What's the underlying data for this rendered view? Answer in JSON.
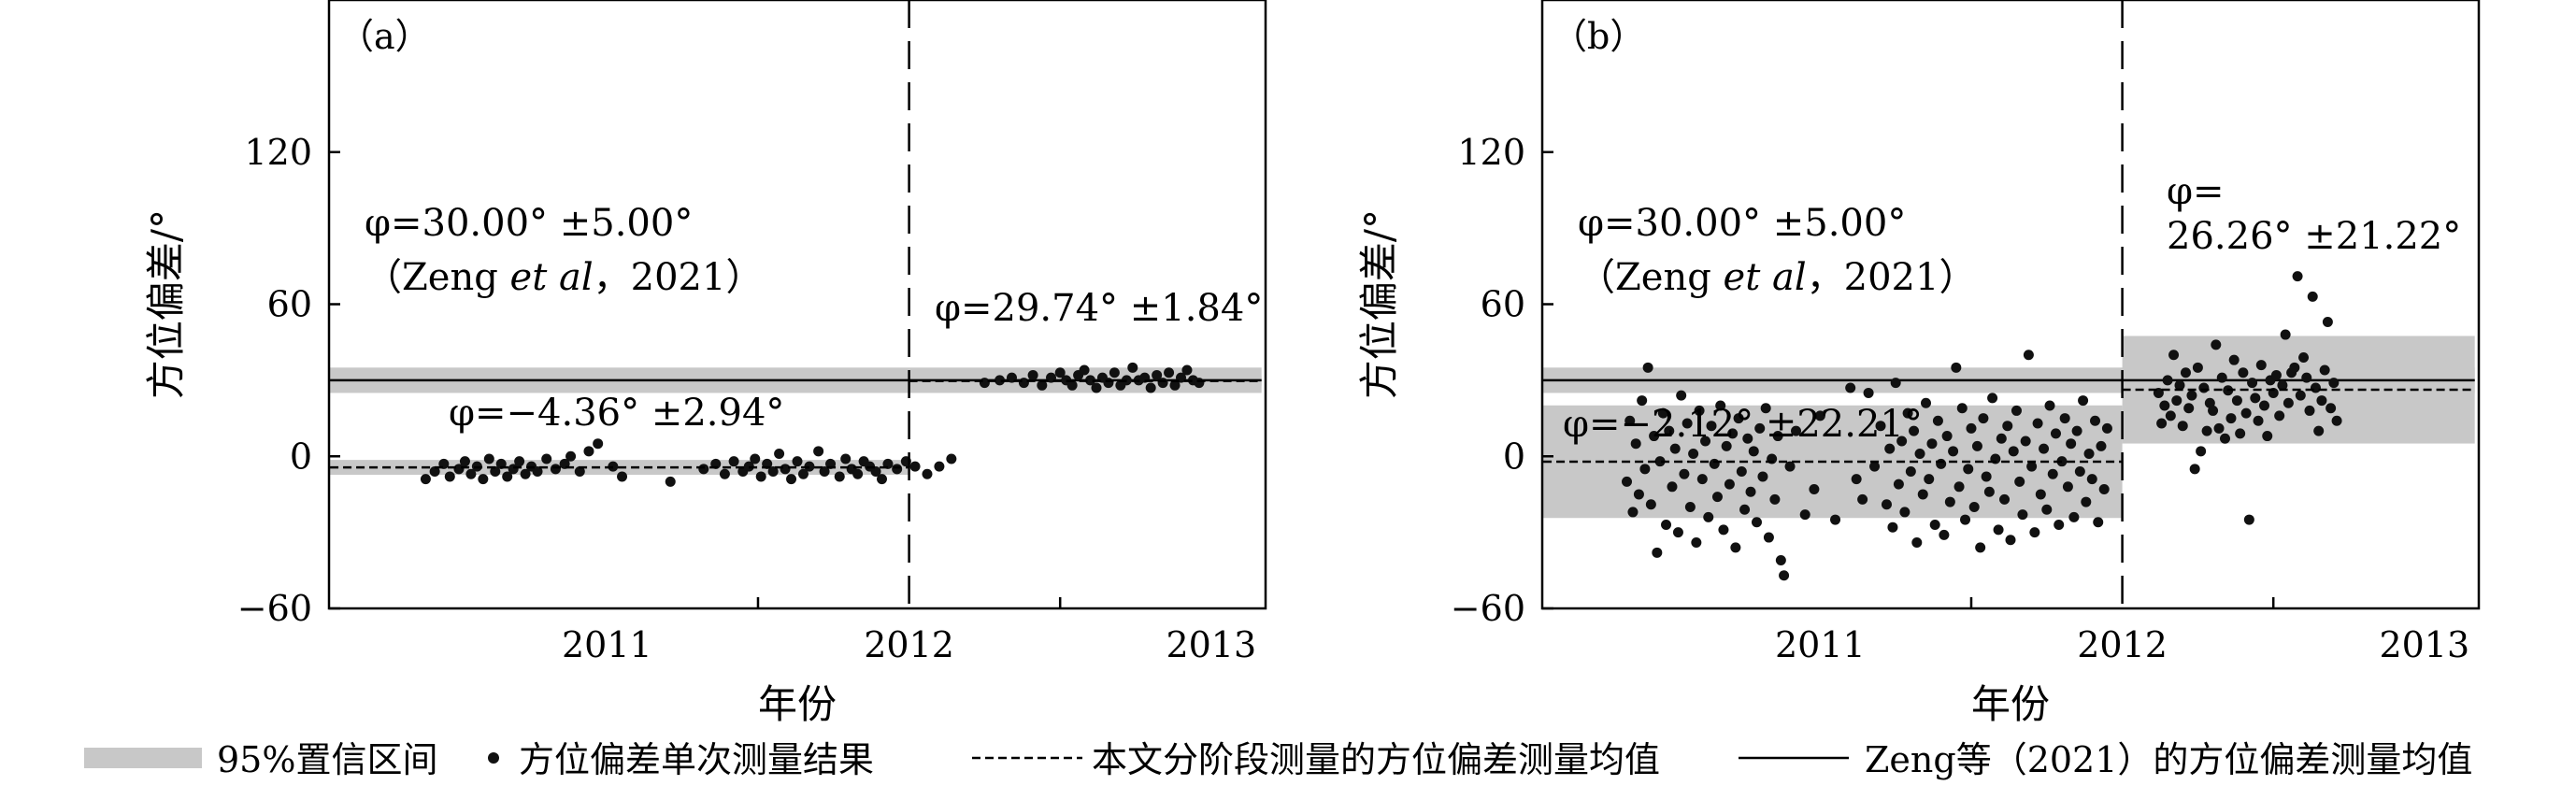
{
  "chart_data": [
    {
      "panel_label": "（a）",
      "type": "scatter",
      "xlabel": "年份",
      "ylabel": "方位偏差/°",
      "x_ticks": [
        "2011",
        "2012",
        "2013"
      ],
      "y_ticks": [
        "120",
        "60",
        "0",
        "−60"
      ],
      "y_tick_values": [
        120,
        60,
        0,
        -60
      ],
      "ylim": [
        -60,
        180
      ],
      "xlim": [
        2010.58,
        2013.68
      ],
      "grid": false,
      "stage_break_date": "2012-07-01",
      "annotations": {
        "zeng": "φ=30.00° ±5.00°",
        "zeng_ref_a": "（Zeng ",
        "zeng_ref_b": "et al",
        "zeng_ref_c": "，2021）",
        "stage1": "φ=−4.36° ±2.94°",
        "stage2": "φ=29.74° ±1.84°"
      },
      "zeng": {
        "mean": 30.0,
        "ci": 5.0,
        "from": "2010-08-01",
        "to": "2013-09-01"
      },
      "stages": [
        {
          "from": "2010-08-01",
          "to": "2012-07-01",
          "mean": -4.36,
          "ci": 2.94
        },
        {
          "from": "2012-07-01",
          "to": "2013-09-01",
          "mean": 29.74,
          "ci": 1.84
        }
      ],
      "points": [
        [
          2010.9,
          -9
        ],
        [
          2010.93,
          -6
        ],
        [
          2010.96,
          -3
        ],
        [
          2010.98,
          -8
        ],
        [
          2011.01,
          -5
        ],
        [
          2011.03,
          -2
        ],
        [
          2011.05,
          -7
        ],
        [
          2011.07,
          -4
        ],
        [
          2011.09,
          -9
        ],
        [
          2011.11,
          -1
        ],
        [
          2011.13,
          -6
        ],
        [
          2011.15,
          -3
        ],
        [
          2011.17,
          -8
        ],
        [
          2011.19,
          -5
        ],
        [
          2011.21,
          -2
        ],
        [
          2011.23,
          -7
        ],
        [
          2011.25,
          -4
        ],
        [
          2011.27,
          -6
        ],
        [
          2011.3,
          -1
        ],
        [
          2011.33,
          -5
        ],
        [
          2011.36,
          -3
        ],
        [
          2011.38,
          0
        ],
        [
          2011.41,
          -6
        ],
        [
          2011.44,
          2
        ],
        [
          2011.47,
          5
        ],
        [
          2011.52,
          -4
        ],
        [
          2011.55,
          -8
        ],
        [
          2011.71,
          -10
        ],
        [
          2011.82,
          -5
        ],
        [
          2011.86,
          -3
        ],
        [
          2011.89,
          -7
        ],
        [
          2011.92,
          -2
        ],
        [
          2011.95,
          -6
        ],
        [
          2011.97,
          -4
        ],
        [
          2011.99,
          -1
        ],
        [
          2012.01,
          -8
        ],
        [
          2012.03,
          -3
        ],
        [
          2012.05,
          -6
        ],
        [
          2012.07,
          1
        ],
        [
          2012.09,
          -5
        ],
        [
          2012.11,
          -9
        ],
        [
          2012.13,
          -2
        ],
        [
          2012.15,
          -7
        ],
        [
          2012.17,
          -4
        ],
        [
          2012.2,
          2
        ],
        [
          2012.22,
          -6
        ],
        [
          2012.24,
          -3
        ],
        [
          2012.27,
          -8
        ],
        [
          2012.29,
          -1
        ],
        [
          2012.31,
          -5
        ],
        [
          2012.33,
          -7
        ],
        [
          2012.35,
          -2
        ],
        [
          2012.37,
          -4
        ],
        [
          2012.39,
          -6
        ],
        [
          2012.41,
          -9
        ],
        [
          2012.43,
          -3
        ],
        [
          2012.46,
          -5
        ],
        [
          2012.49,
          -2
        ],
        [
          2012.52,
          -4
        ],
        [
          2012.56,
          -7
        ],
        [
          2012.6,
          -4
        ],
        [
          2012.64,
          -1
        ],
        [
          2012.75,
          29
        ],
        [
          2012.8,
          30
        ],
        [
          2012.84,
          31
        ],
        [
          2012.88,
          29
        ],
        [
          2012.91,
          32
        ],
        [
          2012.94,
          28
        ],
        [
          2012.97,
          31
        ],
        [
          2013.0,
          33
        ],
        [
          2013.02,
          30
        ],
        [
          2013.04,
          28
        ],
        [
          2013.06,
          32
        ],
        [
          2013.08,
          34
        ],
        [
          2013.1,
          30
        ],
        [
          2013.12,
          27
        ],
        [
          2013.14,
          31
        ],
        [
          2013.16,
          29
        ],
        [
          2013.18,
          33
        ],
        [
          2013.2,
          28
        ],
        [
          2013.22,
          30
        ],
        [
          2013.24,
          35
        ],
        [
          2013.26,
          30
        ],
        [
          2013.28,
          31
        ],
        [
          2013.3,
          27
        ],
        [
          2013.32,
          32
        ],
        [
          2013.34,
          29
        ],
        [
          2013.36,
          33
        ],
        [
          2013.38,
          28
        ],
        [
          2013.4,
          31
        ],
        [
          2013.42,
          34
        ],
        [
          2013.44,
          30
        ],
        [
          2013.46,
          29
        ]
      ]
    },
    {
      "panel_label": "（b）",
      "type": "scatter",
      "xlabel": "年份",
      "ylabel": "方位偏差/°",
      "x_ticks": [
        "2011",
        "2012",
        "2013"
      ],
      "y_ticks": [
        "120",
        "60",
        "0",
        "−60"
      ],
      "y_tick_values": [
        120,
        60,
        0,
        -60
      ],
      "ylim": [
        -60,
        180
      ],
      "xlim": [
        2010.58,
        2013.68
      ],
      "grid": false,
      "stage_break_date": "2012-07-01",
      "annotations": {
        "zeng": "φ=30.00° ±5.00°",
        "zeng_ref_a": "（Zeng ",
        "zeng_ref_b": "et al",
        "zeng_ref_c": "，2021）",
        "stage1": "φ=−2.12° ±22.21°",
        "stage2_line1": "φ=",
        "stage2_line2": "26.26° ±21.22°"
      },
      "zeng": {
        "mean": 30.0,
        "ci": 5.0,
        "from": "2010-08-01",
        "to": "2013-09-01"
      },
      "stages": [
        {
          "from": "2010-08-01",
          "to": "2012-07-01",
          "mean": -2.12,
          "ci": 22.21
        },
        {
          "from": "2012-07-01",
          "to": "2013-09-01",
          "mean": 26.26,
          "ci": 21.22
        }
      ],
      "points": [
        [
          2010.86,
          -10
        ],
        [
          2010.87,
          14
        ],
        [
          2010.88,
          -22
        ],
        [
          2010.89,
          5
        ],
        [
          2010.9,
          -15
        ],
        [
          2010.91,
          22
        ],
        [
          2010.92,
          -5
        ],
        [
          2010.93,
          35
        ],
        [
          2010.94,
          -19
        ],
        [
          2010.95,
          8
        ],
        [
          2010.96,
          -38
        ],
        [
          2010.97,
          -2
        ],
        [
          2010.98,
          17
        ],
        [
          2010.99,
          -27
        ],
        [
          2011.0,
          10
        ],
        [
          2011.01,
          -12
        ],
        [
          2011.02,
          3
        ],
        [
          2011.03,
          -30
        ],
        [
          2011.04,
          24
        ],
        [
          2011.05,
          -7
        ],
        [
          2011.06,
          13
        ],
        [
          2011.07,
          -20
        ],
        [
          2011.08,
          1
        ],
        [
          2011.09,
          -34
        ],
        [
          2011.1,
          18
        ],
        [
          2011.11,
          -9
        ],
        [
          2011.12,
          6
        ],
        [
          2011.13,
          -24
        ],
        [
          2011.14,
          12
        ],
        [
          2011.15,
          -3
        ],
        [
          2011.16,
          -16
        ],
        [
          2011.17,
          20
        ],
        [
          2011.18,
          -29
        ],
        [
          2011.19,
          4
        ],
        [
          2011.2,
          -11
        ],
        [
          2011.21,
          9
        ],
        [
          2011.22,
          -36
        ],
        [
          2011.23,
          15
        ],
        [
          2011.24,
          -6
        ],
        [
          2011.25,
          -21
        ],
        [
          2011.26,
          7
        ],
        [
          2011.27,
          -14
        ],
        [
          2011.28,
          2
        ],
        [
          2011.29,
          -26
        ],
        [
          2011.3,
          11
        ],
        [
          2011.31,
          -8
        ],
        [
          2011.32,
          19
        ],
        [
          2011.33,
          -32
        ],
        [
          2011.34,
          -1
        ],
        [
          2011.35,
          -17
        ],
        [
          2011.36,
          8
        ],
        [
          2011.37,
          -41
        ],
        [
          2011.38,
          -47
        ],
        [
          2011.4,
          -4
        ],
        [
          2011.42,
          10
        ],
        [
          2011.45,
          -23
        ],
        [
          2011.48,
          -13
        ],
        [
          2011.5,
          16
        ],
        [
          2011.55,
          -25
        ],
        [
          2011.6,
          27
        ],
        [
          2011.62,
          -9
        ],
        [
          2011.64,
          -17
        ],
        [
          2011.66,
          25
        ],
        [
          2011.68,
          -4
        ],
        [
          2011.7,
          12
        ],
        [
          2011.72,
          -19
        ],
        [
          2011.73,
          3
        ],
        [
          2011.74,
          -28
        ],
        [
          2011.75,
          29
        ],
        [
          2011.76,
          -11
        ],
        [
          2011.77,
          6
        ],
        [
          2011.78,
          -22
        ],
        [
          2011.79,
          17
        ],
        [
          2011.8,
          -6
        ],
        [
          2011.81,
          10
        ],
        [
          2011.82,
          -34
        ],
        [
          2011.83,
          1
        ],
        [
          2011.84,
          -15
        ],
        [
          2011.85,
          21
        ],
        [
          2011.86,
          -9
        ],
        [
          2011.87,
          5
        ],
        [
          2011.88,
          -27
        ],
        [
          2011.89,
          14
        ],
        [
          2011.9,
          -3
        ],
        [
          2011.91,
          -31
        ],
        [
          2011.92,
          8
        ],
        [
          2011.93,
          -18
        ],
        [
          2011.94,
          2
        ],
        [
          2011.95,
          35
        ],
        [
          2011.96,
          -12
        ],
        [
          2011.97,
          19
        ],
        [
          2011.98,
          -25
        ],
        [
          2011.99,
          -5
        ],
        [
          2012.0,
          11
        ],
        [
          2012.01,
          -20
        ],
        [
          2012.02,
          4
        ],
        [
          2012.03,
          -36
        ],
        [
          2012.04,
          15
        ],
        [
          2012.05,
          -8
        ],
        [
          2012.06,
          -14
        ],
        [
          2012.07,
          23
        ],
        [
          2012.08,
          -1
        ],
        [
          2012.09,
          -29
        ],
        [
          2012.1,
          7
        ],
        [
          2012.11,
          -17
        ],
        [
          2012.12,
          12
        ],
        [
          2012.13,
          -33
        ],
        [
          2012.14,
          2
        ],
        [
          2012.15,
          18
        ],
        [
          2012.16,
          -10
        ],
        [
          2012.17,
          -23
        ],
        [
          2012.18,
          6
        ],
        [
          2012.19,
          40
        ],
        [
          2012.2,
          -4
        ],
        [
          2012.21,
          -30
        ],
        [
          2012.22,
          13
        ],
        [
          2012.23,
          -15
        ],
        [
          2012.24,
          3
        ],
        [
          2012.25,
          -21
        ],
        [
          2012.26,
          20
        ],
        [
          2012.27,
          -7
        ],
        [
          2012.28,
          9
        ],
        [
          2012.29,
          -27
        ],
        [
          2012.3,
          -2
        ],
        [
          2012.31,
          15
        ],
        [
          2012.32,
          -12
        ],
        [
          2012.33,
          5
        ],
        [
          2012.34,
          -24
        ],
        [
          2012.35,
          10
        ],
        [
          2012.36,
          -6
        ],
        [
          2012.37,
          22
        ],
        [
          2012.38,
          -18
        ],
        [
          2012.39,
          1
        ],
        [
          2012.4,
          -9
        ],
        [
          2012.41,
          14
        ],
        [
          2012.42,
          -26
        ],
        [
          2012.43,
          4
        ],
        [
          2012.44,
          -13
        ],
        [
          2012.45,
          11
        ],
        [
          2012.62,
          25
        ],
        [
          2012.63,
          13
        ],
        [
          2012.64,
          20
        ],
        [
          2012.65,
          30
        ],
        [
          2012.66,
          16
        ],
        [
          2012.67,
          40
        ],
        [
          2012.68,
          22
        ],
        [
          2012.69,
          28
        ],
        [
          2012.7,
          12
        ],
        [
          2012.71,
          33
        ],
        [
          2012.72,
          19
        ],
        [
          2012.73,
          24
        ],
        [
          2012.74,
          -5
        ],
        [
          2012.75,
          35
        ],
        [
          2012.76,
          2
        ],
        [
          2012.77,
          27
        ],
        [
          2012.78,
          10
        ],
        [
          2012.79,
          21
        ],
        [
          2012.8,
          18
        ],
        [
          2012.81,
          44
        ],
        [
          2012.82,
          11
        ],
        [
          2012.83,
          31
        ],
        [
          2012.84,
          7
        ],
        [
          2012.85,
          26
        ],
        [
          2012.86,
          15
        ],
        [
          2012.87,
          38
        ],
        [
          2012.88,
          22
        ],
        [
          2012.89,
          9
        ],
        [
          2012.9,
          33
        ],
        [
          2012.91,
          17
        ],
        [
          2012.92,
          -25
        ],
        [
          2012.93,
          29
        ],
        [
          2012.94,
          23
        ],
        [
          2012.95,
          14
        ],
        [
          2012.96,
          36
        ],
        [
          2012.97,
          20
        ],
        [
          2012.98,
          8
        ],
        [
          2012.99,
          30
        ],
        [
          2013.0,
          25
        ],
        [
          2013.01,
          32
        ],
        [
          2013.02,
          16
        ],
        [
          2013.03,
          28
        ],
        [
          2013.04,
          48
        ],
        [
          2013.05,
          21
        ],
        [
          2013.06,
          33
        ],
        [
          2013.07,
          35
        ],
        [
          2013.08,
          71
        ],
        [
          2013.09,
          24
        ],
        [
          2013.1,
          39
        ],
        [
          2013.11,
          31
        ],
        [
          2013.12,
          18
        ],
        [
          2013.13,
          63
        ],
        [
          2013.14,
          27
        ],
        [
          2013.15,
          10
        ],
        [
          2013.16,
          22
        ],
        [
          2013.17,
          34
        ],
        [
          2013.18,
          53
        ],
        [
          2013.19,
          19
        ],
        [
          2013.2,
          29
        ],
        [
          2013.21,
          14
        ]
      ]
    }
  ],
  "legend": {
    "items": [
      {
        "kind": "band",
        "label": "95%置信区间"
      },
      {
        "kind": "dot",
        "label": "方位偏差单次测量结果"
      },
      {
        "kind": "dashed",
        "label": "本文分阶段测量的方位偏差测量均值"
      },
      {
        "kind": "solid",
        "label": "Zeng等（2021）的方位偏差测量均值"
      }
    ]
  },
  "colors": {
    "band": "#c8c8c8",
    "points": "#111111",
    "lines": "#000000",
    "axes": "#000000"
  }
}
